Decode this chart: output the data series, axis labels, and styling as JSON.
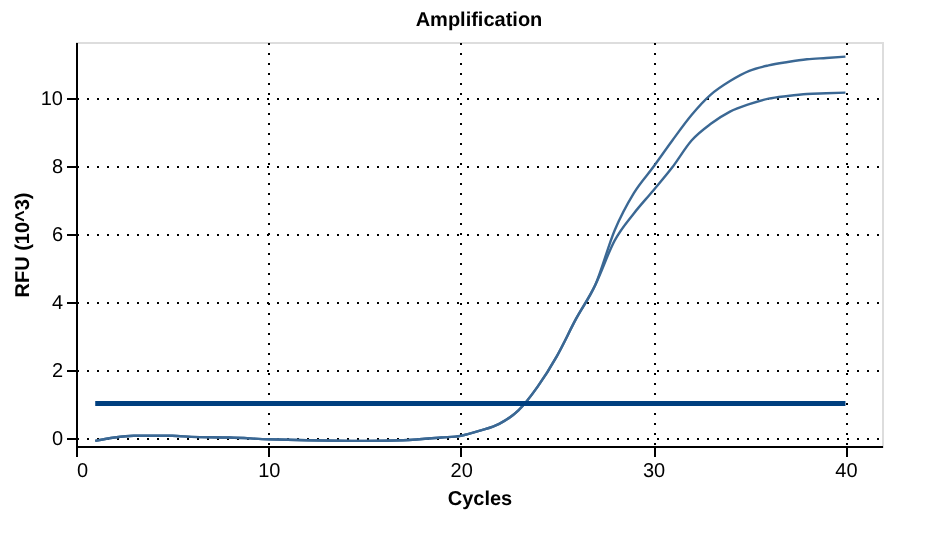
{
  "chart_data": {
    "type": "line",
    "title": "Amplification",
    "xlabel": "Cycles",
    "ylabel": "RFU (10^3)",
    "x": [
      1,
      2,
      3,
      4,
      5,
      6,
      8,
      10,
      12,
      15,
      17,
      19,
      20,
      21,
      22,
      23,
      24,
      25,
      26,
      27,
      28,
      29,
      30,
      31,
      32,
      33,
      34,
      35,
      36,
      37,
      38,
      39,
      40
    ],
    "series": [
      {
        "color": "#3b6894",
        "values": [
          -0.1,
          0.0,
          0.05,
          0.05,
          0.05,
          0.02,
          0.0,
          -0.05,
          -0.08,
          -0.1,
          -0.08,
          0.0,
          0.05,
          0.2,
          0.4,
          0.8,
          1.5,
          2.4,
          3.5,
          4.5,
          6.1,
          7.2,
          7.96,
          8.75,
          9.5,
          10.1,
          10.5,
          10.8,
          10.96,
          11.06,
          11.14,
          11.18,
          11.22
        ]
      },
      {
        "color": "#3b6894",
        "values": [
          -0.1,
          0.0,
          0.05,
          0.05,
          0.05,
          0.02,
          0.0,
          -0.05,
          -0.08,
          -0.1,
          -0.08,
          0.0,
          0.05,
          0.2,
          0.4,
          0.8,
          1.5,
          2.4,
          3.5,
          4.5,
          5.8,
          6.6,
          7.27,
          7.96,
          8.75,
          9.24,
          9.6,
          9.82,
          9.98,
          10.06,
          10.12,
          10.14,
          10.16
        ]
      }
    ],
    "ref_lines": [
      {
        "axis": "y",
        "value": 1,
        "color": "#003f7f"
      }
    ],
    "xlim": [
      0,
      41.9
    ],
    "ylim": [
      -0.25,
      11.65
    ],
    "xticks": [
      0,
      10,
      20,
      30,
      40
    ],
    "yticks": [
      0,
      2,
      4,
      6,
      8,
      10
    ],
    "grid": true,
    "marker": "none",
    "line_style": "solid"
  }
}
